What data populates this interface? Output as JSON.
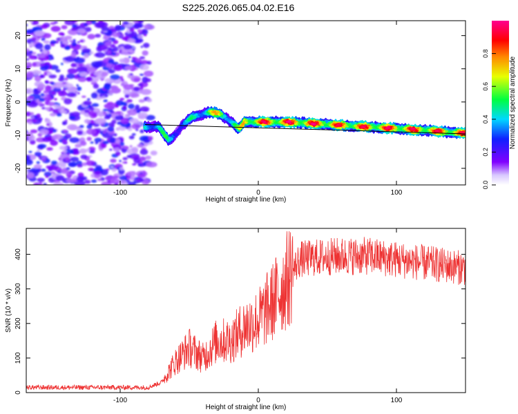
{
  "figure_title": "S225.2026.065.04.02.E16",
  "chart_data": [
    {
      "type": "heatmap",
      "title": "",
      "xlabel": "Height of straight line (km)",
      "ylabel": "Frequency (Hz)",
      "xlim": [
        -168,
        150
      ],
      "ylim": [
        -25,
        24.5
      ],
      "xticks": [
        -100,
        0,
        100
      ],
      "yticks": [
        -20,
        -10,
        0,
        10,
        20
      ],
      "colorbar": {
        "label": "Normalized spectral amplitude",
        "range": [
          0,
          1
        ],
        "ticks": [
          0.0,
          0.2,
          0.4,
          0.6,
          0.8
        ],
        "tick_labels": [
          "0.0",
          "0.2",
          "0.4",
          "0.6",
          "0.8"
        ],
        "colors": [
          "#ffffff",
          "#7a00ff",
          "#2030ff",
          "#00d8ff",
          "#00ff40",
          "#f0ff00",
          "#ff8000",
          "#ff0000",
          "#ff0090"
        ]
      },
      "noise_region_x": [
        -168,
        -75
      ],
      "ridge": {
        "x": [
          -82,
          -72,
          -65,
          -60,
          -55,
          -48,
          -42,
          -35,
          -28,
          -20,
          -14,
          -10,
          -5,
          0,
          20,
          40,
          60,
          80,
          100,
          120,
          150
        ],
        "y": [
          -7.5,
          -7.5,
          -11.5,
          -10,
          -7,
          -4.5,
          -4,
          -3,
          -3.5,
          -6,
          -8,
          -6,
          -6,
          -6,
          -6,
          -6.5,
          -7,
          -7.5,
          -8,
          -8.5,
          -9.5
        ],
        "amplitude": [
          0.5,
          0.55,
          0.5,
          0.45,
          0.4,
          0.5,
          0.55,
          0.7,
          0.75,
          0.6,
          0.6,
          0.85,
          0.9,
          0.92,
          0.95,
          0.95,
          0.9,
          0.92,
          0.93,
          0.92,
          0.9
        ]
      },
      "fit_line": {
        "x": [
          -82,
          150
        ],
        "y": [
          -6.8,
          -9.6
        ]
      }
    },
    {
      "type": "line",
      "title": "",
      "xlabel": "Height of straight line (km)",
      "ylabel": "SNR (10 * v/v)",
      "xlim": [
        -168,
        150
      ],
      "ylim": [
        0,
        475
      ],
      "xticks": [
        -100,
        0,
        100
      ],
      "yticks": [
        0,
        100,
        200,
        300,
        400
      ],
      "series": [
        {
          "name": "SNR",
          "color": "#ee3333",
          "x": [
            -168,
            -80,
            -70,
            -60,
            -50,
            -40,
            -30,
            -20,
            -10,
            0,
            10,
            20,
            30,
            40,
            60,
            80,
            100,
            120,
            150
          ],
          "values": [
            15,
            15,
            30,
            90,
            130,
            100,
            150,
            150,
            190,
            210,
            260,
            320,
            385,
            390,
            395,
            395,
            385,
            375,
            360
          ]
        }
      ]
    }
  ]
}
